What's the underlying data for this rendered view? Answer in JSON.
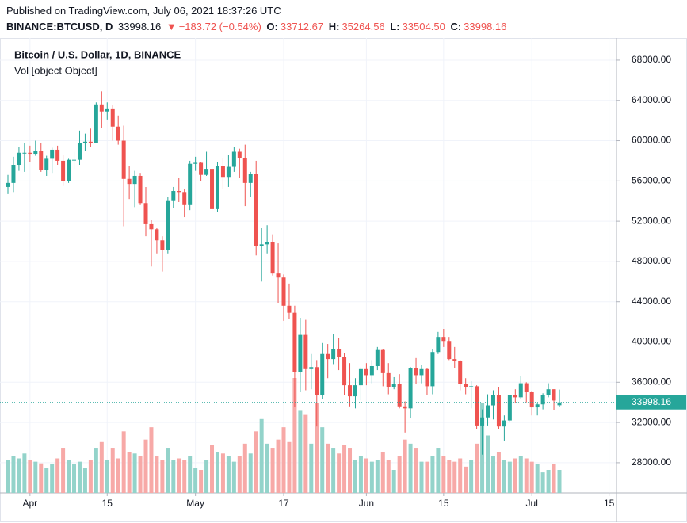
{
  "header": {
    "published": "Published on TradingView.com, July 06, 2021 18:37:26 UTC",
    "symbol": "BINANCE:BTCUSD, D",
    "price": "33998.16",
    "change": "−183.72 (−0.54%)",
    "o_label": "O:",
    "o": "33712.67",
    "h_label": "H:",
    "h": "35264.56",
    "l_label": "L:",
    "l": "33504.50",
    "c_label": "C:",
    "c": "33998.16"
  },
  "chart_data": {
    "type": "candlestick",
    "title": "Bitcoin / U.S. Dollar, 1D, BINANCE",
    "volume_label": "Vol [object Object]",
    "x": [
      "2021-03-28",
      "2021-03-29",
      "2021-03-30",
      "2021-03-31",
      "2021-04-01",
      "2021-04-02",
      "2021-04-03",
      "2021-04-04",
      "2021-04-05",
      "2021-04-06",
      "2021-04-07",
      "2021-04-08",
      "2021-04-09",
      "2021-04-10",
      "2021-04-11",
      "2021-04-12",
      "2021-04-13",
      "2021-04-14",
      "2021-04-15",
      "2021-04-16",
      "2021-04-17",
      "2021-04-18",
      "2021-04-19",
      "2021-04-20",
      "2021-04-21",
      "2021-04-22",
      "2021-04-23",
      "2021-04-24",
      "2021-04-25",
      "2021-04-26",
      "2021-04-27",
      "2021-04-28",
      "2021-04-29",
      "2021-04-30",
      "2021-05-01",
      "2021-05-02",
      "2021-05-03",
      "2021-05-04",
      "2021-05-05",
      "2021-05-06",
      "2021-05-07",
      "2021-05-08",
      "2021-05-09",
      "2021-05-10",
      "2021-05-11",
      "2021-05-12",
      "2021-05-13",
      "2021-05-14",
      "2021-05-15",
      "2021-05-16",
      "2021-05-17",
      "2021-05-18",
      "2021-05-19",
      "2021-05-20",
      "2021-05-21",
      "2021-05-22",
      "2021-05-23",
      "2021-05-24",
      "2021-05-25",
      "2021-05-26",
      "2021-05-27",
      "2021-05-28",
      "2021-05-29",
      "2021-05-30",
      "2021-05-31",
      "2021-06-01",
      "2021-06-02",
      "2021-06-03",
      "2021-06-04",
      "2021-06-05",
      "2021-06-06",
      "2021-06-07",
      "2021-06-08",
      "2021-06-09",
      "2021-06-10",
      "2021-06-11",
      "2021-06-12",
      "2021-06-13",
      "2021-06-14",
      "2021-06-15",
      "2021-06-16",
      "2021-06-17",
      "2021-06-18",
      "2021-06-19",
      "2021-06-20",
      "2021-06-21",
      "2021-06-22",
      "2021-06-23",
      "2021-06-24",
      "2021-06-25",
      "2021-06-26",
      "2021-06-27",
      "2021-06-28",
      "2021-06-29",
      "2021-06-30",
      "2021-07-01",
      "2021-07-02",
      "2021-07-03",
      "2021-07-04",
      "2021-07-05",
      "2021-07-06"
    ],
    "open": [
      55400,
      55800,
      57600,
      58800,
      58800,
      58700,
      59000,
      57100,
      58200,
      59100,
      58000,
      56000,
      58100,
      58100,
      59800,
      59900,
      59800,
      63600,
      62900,
      63200,
      61400,
      60000,
      56200,
      55700,
      56500,
      53800,
      51700,
      51200,
      50100,
      49100,
      54000,
      55000,
      54900,
      53600,
      57700,
      57800,
      56600,
      57200,
      53200,
      57500,
      56400,
      57400,
      58900,
      58300,
      55800,
      56700,
      49500,
      49700,
      49900,
      46800,
      46400,
      43600,
      42900,
      37000,
      40700,
      37300,
      37500,
      34700,
      38800,
      38300,
      39300,
      38500,
      35700,
      34600,
      35700,
      37300,
      36700,
      37600,
      39200,
      36900,
      35500,
      35800,
      33600,
      33400,
      37400,
      36700,
      37300,
      35600,
      39000,
      40500,
      40100,
      38300,
      38100,
      35800,
      35500,
      35600,
      31700,
      32500,
      33700,
      34700,
      31600,
      32200,
      34700,
      34500,
      35900,
      35000,
      33500,
      33800,
      34700,
      35300,
      33712.67
    ],
    "high": [
      56600,
      58400,
      59400,
      59800,
      59500,
      60000,
      59800,
      58500,
      59300,
      59500,
      58600,
      58200,
      58900,
      61000,
      60700,
      61200,
      63800,
      64900,
      63800,
      63500,
      62500,
      61500,
      57500,
      57000,
      56800,
      55400,
      52100,
      51300,
      50500,
      54400,
      55400,
      56300,
      55200,
      58000,
      58400,
      57900,
      58900,
      57300,
      57900,
      58300,
      58600,
      59400,
      59200,
      59600,
      56900,
      58000,
      51300,
      51600,
      50700,
      49800,
      46700,
      45800,
      43600,
      42400,
      42200,
      38800,
      38200,
      39900,
      39800,
      40800,
      40400,
      38900,
      37900,
      36400,
      37500,
      37900,
      38200,
      39500,
      39300,
      37900,
      36500,
      36800,
      34100,
      37500,
      38400,
      37700,
      37400,
      39300,
      41000,
      41300,
      40500,
      39500,
      38200,
      36400,
      36100,
      35700,
      33300,
      34800,
      35200,
      35500,
      32700,
      34700,
      35300,
      36600,
      36000,
      35100,
      33900,
      34900,
      35900,
      35300,
      35264.56
    ],
    "low": [
      54700,
      54900,
      57000,
      56900,
      57900,
      58500,
      56900,
      56500,
      56800,
      57600,
      55500,
      55800,
      57200,
      57600,
      59000,
      59400,
      59800,
      61300,
      62100,
      60000,
      59600,
      51500,
      54200,
      53400,
      53600,
      50500,
      47500,
      48800,
      47000,
      48800,
      53300,
      53900,
      52400,
      53100,
      57000,
      56000,
      56500,
      53000,
      52900,
      55200,
      55400,
      56900,
      56300,
      53500,
      54400,
      48600,
      46000,
      48800,
      46600,
      43900,
      42100,
      42300,
      33500,
      35000,
      35200,
      35300,
      31600,
      34300,
      36400,
      37800,
      37200,
      34700,
      33600,
      33400,
      34200,
      35700,
      35900,
      37200,
      35600,
      34800,
      35300,
      33400,
      31000,
      32400,
      35800,
      35900,
      34700,
      34800,
      38800,
      39500,
      38200,
      37400,
      35200,
      34800,
      33400,
      31300,
      28800,
      31700,
      32300,
      31300,
      30200,
      32000,
      33900,
      34300,
      34000,
      32700,
      32700,
      33300,
      34500,
      33200,
      33504.5
    ],
    "close": [
      55800,
      57600,
      58800,
      58800,
      58700,
      59000,
      57100,
      58200,
      59100,
      58000,
      56000,
      58100,
      58100,
      59800,
      59900,
      59800,
      63600,
      62900,
      63200,
      61400,
      60000,
      56200,
      55700,
      56500,
      53800,
      51700,
      51200,
      50100,
      49100,
      54000,
      55000,
      54900,
      53600,
      57700,
      57800,
      56600,
      57200,
      53200,
      57500,
      56400,
      57400,
      58900,
      58300,
      55800,
      56700,
      49500,
      49700,
      49900,
      46800,
      46400,
      43600,
      42900,
      37000,
      40700,
      37300,
      37500,
      34700,
      38800,
      38300,
      39300,
      38500,
      35700,
      34600,
      35700,
      37300,
      36700,
      37600,
      39200,
      36900,
      35500,
      35800,
      33600,
      33400,
      37400,
      36700,
      37300,
      35600,
      39000,
      40500,
      40100,
      38300,
      38100,
      35800,
      35500,
      35600,
      31700,
      32500,
      33700,
      34700,
      31600,
      32200,
      34700,
      34500,
      35900,
      35000,
      33500,
      33800,
      34700,
      35300,
      34181.88,
      33998.16
    ],
    "volume": [
      40,
      45,
      42,
      48,
      40,
      38,
      36,
      30,
      35,
      42,
      55,
      40,
      35,
      38,
      30,
      40,
      55,
      62,
      40,
      55,
      42,
      75,
      50,
      48,
      45,
      65,
      80,
      45,
      40,
      55,
      40,
      42,
      40,
      45,
      30,
      28,
      40,
      58,
      50,
      48,
      45,
      38,
      45,
      60,
      48,
      75,
      90,
      60,
      55,
      65,
      80,
      62,
      140,
      100,
      95,
      60,
      110,
      80,
      60,
      55,
      48,
      58,
      55,
      40,
      45,
      42,
      38,
      40,
      50,
      40,
      28,
      45,
      65,
      60,
      55,
      38,
      38,
      45,
      55,
      45,
      40,
      38,
      42,
      32,
      40,
      60,
      110,
      70,
      45,
      50,
      40,
      38,
      42,
      45,
      42,
      38,
      35,
      25,
      28,
      35,
      28
    ],
    "ylim": [
      25000,
      70200
    ],
    "yticks": [
      {
        "value": 28000,
        "label": "28000.00"
      },
      {
        "value": 32000,
        "label": "32000.00"
      },
      {
        "value": 36000,
        "label": "36000.00"
      },
      {
        "value": 40000,
        "label": "40000.00"
      },
      {
        "value": 44000,
        "label": "44000.00"
      },
      {
        "value": 48000,
        "label": "48000.00"
      },
      {
        "value": 52000,
        "label": "52000.00"
      },
      {
        "value": 56000,
        "label": "56000.00"
      },
      {
        "value": 60000,
        "label": "60000.00"
      },
      {
        "value": 64000,
        "label": "64000.00"
      },
      {
        "value": 68000,
        "label": "68000.00"
      }
    ],
    "xticks": [
      {
        "value": "2021-04-01",
        "label": "Apr"
      },
      {
        "value": "2021-04-15",
        "label": "15"
      },
      {
        "value": "2021-05-01",
        "label": "May"
      },
      {
        "value": "2021-05-17",
        "label": "17"
      },
      {
        "value": "2021-06-01",
        "label": "Jun"
      },
      {
        "value": "2021-06-15",
        "label": "15"
      },
      {
        "value": "2021-07-01",
        "label": "Jul"
      },
      {
        "value": "2021-07-15",
        "label": "15"
      }
    ],
    "grid": true,
    "up_color": "#26a69a",
    "down_color": "#ef5350",
    "volume_up_color": "#93d3ca",
    "volume_down_color": "#f7a9a7"
  }
}
